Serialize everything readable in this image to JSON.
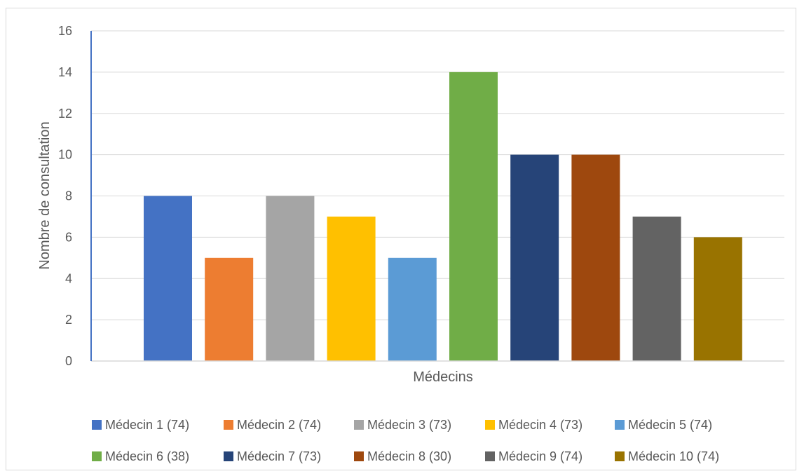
{
  "chart_data": {
    "type": "bar",
    "xlabel": "Médecins",
    "ylabel": "Nombre de consultation",
    "ylim": [
      0,
      16
    ],
    "yticks": [
      0,
      2,
      4,
      6,
      8,
      10,
      12,
      14,
      16
    ],
    "grid": true,
    "legend_position": "bottom",
    "series": [
      {
        "name": "Médecin 1 (74)",
        "value": 8,
        "color": "#4472C4"
      },
      {
        "name": "Médecin 2 (74)",
        "value": 5,
        "color": "#ED7D31"
      },
      {
        "name": "Médecin 3 (73)",
        "value": 8,
        "color": "#A5A5A5"
      },
      {
        "name": "Médecin 4 (73)",
        "value": 7,
        "color": "#FFC000"
      },
      {
        "name": "Médecin 5 (74)",
        "value": 5,
        "color": "#5B9BD5"
      },
      {
        "name": "Médecin 6 (38)",
        "value": 14,
        "color": "#70AD47"
      },
      {
        "name": "Médecin 7 (73)",
        "value": 10,
        "color": "#264478"
      },
      {
        "name": "Médecin 8 (30)",
        "value": 10,
        "color": "#9E480E"
      },
      {
        "name": "Médecin 9 (74)",
        "value": 7,
        "color": "#636363"
      },
      {
        "name": "Médecin 10 (74)",
        "value": 6,
        "color": "#997300"
      }
    ]
  }
}
